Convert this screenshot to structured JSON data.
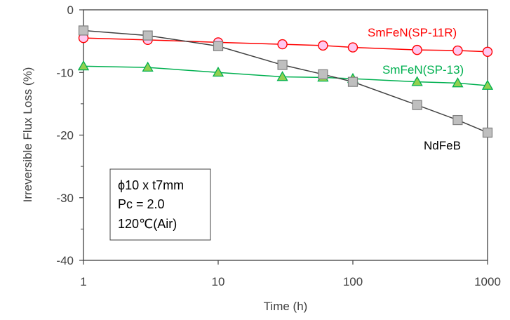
{
  "chart_data": {
    "type": "line",
    "xlabel": "Time (h)",
    "ylabel": "Irreversible Flux Loss (%)",
    "x_scale": "log",
    "xlim": [
      1,
      1000
    ],
    "ylim": [
      -40,
      0
    ],
    "x_ticks": [
      1,
      10,
      100,
      1000
    ],
    "x_tick_labels": [
      "1",
      "10",
      "100",
      "1000"
    ],
    "y_ticks": [
      0,
      -10,
      -20,
      -30,
      -40
    ],
    "y_tick_labels": [
      "0",
      "-10",
      "-20",
      "-30",
      "-40"
    ],
    "grid": false,
    "series": [
      {
        "name": "SmFeN(SP-11R)",
        "color": "#ff0000",
        "marker": "circle",
        "marker_fill": "#ffc8f0",
        "x": [
          1,
          3,
          10,
          30,
          60,
          100,
          300,
          600,
          1000
        ],
        "y": [
          -4.5,
          -4.8,
          -5.2,
          -5.5,
          -5.7,
          -6.0,
          -6.4,
          -6.5,
          -6.7
        ]
      },
      {
        "name": "SmFeN(SP-13)",
        "color": "#00b050",
        "marker": "triangle",
        "marker_fill": "#92d050",
        "x": [
          1,
          3,
          10,
          30,
          60,
          100,
          300,
          600,
          1000
        ],
        "y": [
          -9.0,
          -9.2,
          -10.0,
          -10.7,
          -10.8,
          -11.0,
          -11.5,
          -11.7,
          -12.1
        ]
      },
      {
        "name": "NdFeB",
        "color": "#404040",
        "marker": "square",
        "marker_fill": "#bfbfbf",
        "x": [
          1,
          3,
          10,
          30,
          60,
          100,
          300,
          600,
          1000
        ],
        "y": [
          -3.3,
          -4.1,
          -5.8,
          -8.8,
          -10.3,
          -11.5,
          -15.2,
          -17.6,
          -19.6
        ]
      }
    ],
    "annotation": {
      "lines": [
        "ϕ10 x t7mm",
        "Pc = 2.0",
        "120℃(Air)"
      ]
    }
  }
}
